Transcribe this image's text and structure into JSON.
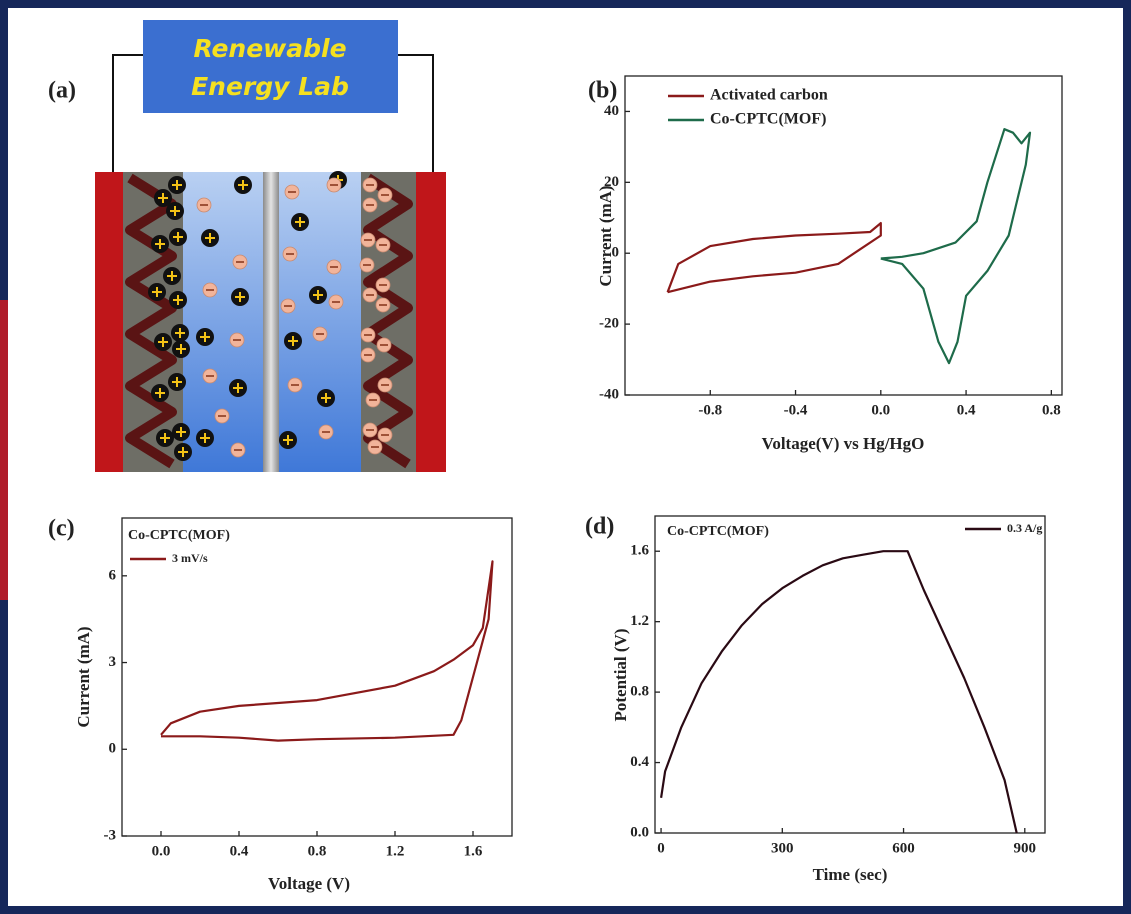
{
  "figure": {
    "banner": {
      "lines": [
        "Renewable",
        "Energy Lab"
      ]
    },
    "panel_label": "(a)"
  },
  "chart_data": [
    {
      "type": "line",
      "panel_label": "(b)",
      "x_label": "Voltage(V) vs Hg/HgO",
      "y_label": "Current (mA)",
      "xlim": [
        -1.2,
        0.85
      ],
      "ylim": [
        -40,
        50
      ],
      "xticks": [
        -0.8,
        -0.4,
        {
          "value": 0,
          "label": "0.0"
        },
        0.4,
        0.8
      ],
      "yticks": [
        -40,
        -20,
        0,
        20,
        40
      ],
      "legend": "top-left",
      "series": [
        {
          "name": "Activated carbon",
          "color": "#8b1a1a",
          "x": [
            -1.0,
            -0.95,
            -0.8,
            -0.6,
            -0.4,
            -0.2,
            -0.05,
            0.0,
            0.0,
            -0.1,
            -0.2,
            -0.4,
            -0.6,
            -0.8,
            -1.0
          ],
          "values": [
            -11,
            -3,
            2,
            4,
            5,
            5.5,
            6,
            8.5,
            5,
            1,
            -3,
            -5.5,
            -6.5,
            -8,
            -11
          ]
        },
        {
          "name": "Co-CPTC(MOF)",
          "color": "#1e6b4a",
          "x": [
            0.0,
            0.1,
            0.2,
            0.27,
            0.32,
            0.36,
            0.4,
            0.5,
            0.6,
            0.68,
            0.7,
            0.66,
            0.62,
            0.58,
            0.5,
            0.45,
            0.35,
            0.2,
            0.1,
            0.0
          ],
          "values": [
            -1.5,
            -3,
            -10,
            -25,
            -31,
            -25,
            -12,
            -5,
            5,
            25,
            34,
            31,
            34,
            35,
            20,
            9,
            3,
            0,
            -1,
            -1.5
          ]
        }
      ]
    },
    {
      "type": "line",
      "panel_label": "(c)",
      "annotation": "Co-CPTC(MOF)",
      "x_label": "Voltage (V)",
      "y_label": "Current (mA)",
      "xlim": [
        -0.2,
        1.8
      ],
      "ylim": [
        -3,
        8
      ],
      "xticks": [
        {
          "value": 0,
          "label": "0.0"
        },
        0.4,
        0.8,
        1.2,
        1.6
      ],
      "yticks": [
        -3,
        0,
        3,
        6
      ],
      "legend": "top-left",
      "series": [
        {
          "name": "3 mV/s",
          "color": "#8b1a1a",
          "x": [
            0.0,
            0.05,
            0.2,
            0.4,
            0.8,
            1.2,
            1.4,
            1.5,
            1.6,
            1.65,
            1.7,
            1.68,
            1.64,
            1.58,
            1.54,
            1.5,
            1.2,
            0.8,
            0.6,
            0.4,
            0.2,
            0.0
          ],
          "values": [
            0.5,
            0.9,
            1.3,
            1.5,
            1.7,
            2.2,
            2.7,
            3.1,
            3.6,
            4.2,
            6.5,
            4.5,
            3.5,
            2.0,
            1.0,
            0.5,
            0.4,
            0.35,
            0.3,
            0.4,
            0.45,
            0.45
          ]
        }
      ]
    },
    {
      "type": "line",
      "panel_label": "(d)",
      "annotation": "Co-CPTC(MOF)",
      "x_label": "Time (sec)",
      "y_label": "Potential (V)",
      "xlim": [
        -15,
        950
      ],
      "ylim": [
        0,
        1.8
      ],
      "xticks": [
        0,
        300,
        600,
        900
      ],
      "yticks": [
        {
          "value": 0,
          "label": "0.0"
        },
        0.4,
        0.8,
        1.2,
        1.6
      ],
      "legend": "top-right",
      "series": [
        {
          "name": "0.3 A/g",
          "color": "#2a0a14",
          "x": [
            0,
            10,
            50,
            100,
            150,
            200,
            250,
            300,
            350,
            400,
            450,
            500,
            550,
            610,
            650,
            700,
            750,
            800,
            850,
            880
          ],
          "values": [
            0.2,
            0.35,
            0.6,
            0.85,
            1.03,
            1.18,
            1.3,
            1.39,
            1.46,
            1.52,
            1.56,
            1.58,
            1.6,
            1.6,
            1.38,
            1.13,
            0.88,
            0.6,
            0.3,
            0
          ]
        }
      ]
    }
  ]
}
